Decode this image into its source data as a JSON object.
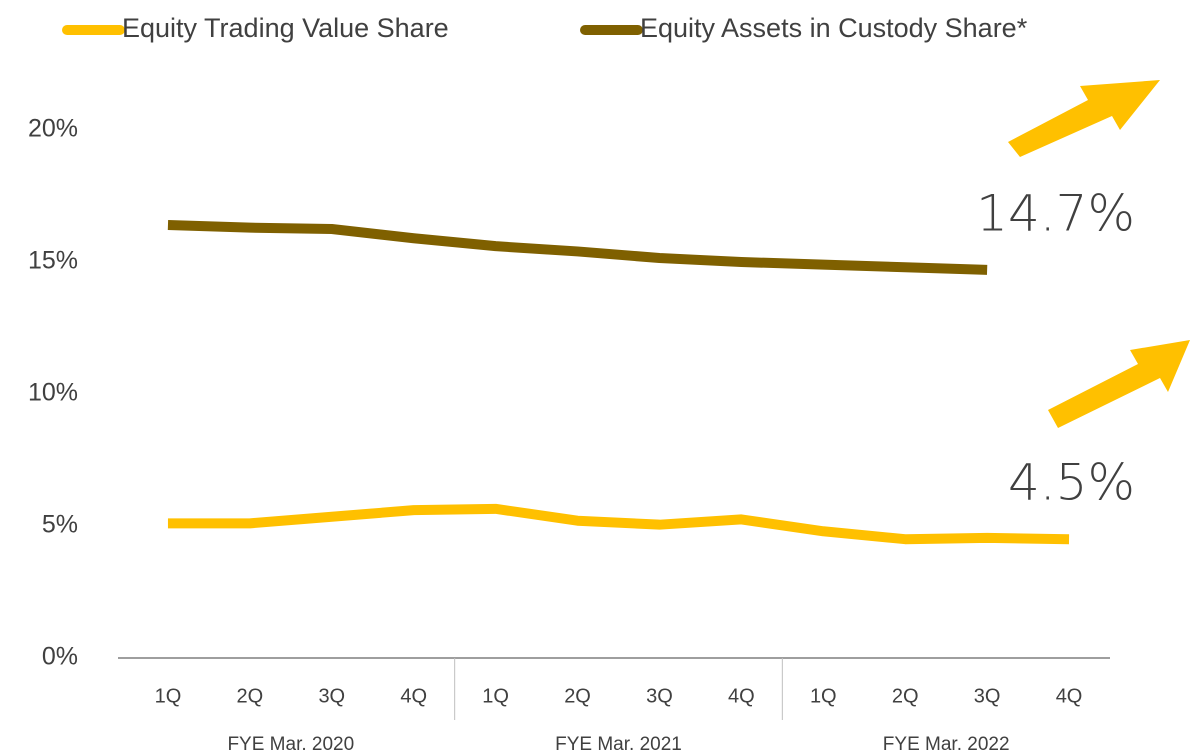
{
  "chart_data": {
    "type": "line",
    "categories": [
      "1Q",
      "2Q",
      "3Q",
      "4Q",
      "1Q",
      "2Q",
      "3Q",
      "4Q",
      "1Q",
      "2Q",
      "3Q",
      "4Q"
    ],
    "groups": [
      "FYE Mar. 2020",
      "FYE Mar. 2021",
      "FYE Mar. 2022"
    ],
    "series": [
      {
        "name": "Equity Trading Value Share",
        "color": "#FFC000",
        "values": [
          5.1,
          5.1,
          5.35,
          5.6,
          5.65,
          5.2,
          5.05,
          5.25,
          4.8,
          4.5,
          4.55,
          4.5
        ],
        "value_labels": [
          null,
          null,
          null,
          null,
          null,
          null,
          null,
          null,
          null,
          null,
          null,
          "4.5%"
        ]
      },
      {
        "name": "Equity Assets in Custody Share*",
        "color": "#7F6000",
        "values": [
          16.4,
          16.3,
          16.25,
          15.9,
          15.6,
          15.4,
          15.15,
          15.0,
          14.9,
          14.8,
          14.7,
          null
        ],
        "value_labels": [
          null,
          null,
          null,
          null,
          null,
          null,
          null,
          null,
          null,
          null,
          "14.7%",
          null
        ]
      }
    ],
    "ylim": [
      0,
      20
    ],
    "yticks": [
      {
        "value": 0,
        "label": "0%"
      },
      {
        "value": 5,
        "label": "5%"
      },
      {
        "value": 10,
        "label": "10%"
      },
      {
        "value": 15,
        "label": "15%"
      },
      {
        "value": 20,
        "label": "20%"
      }
    ],
    "grid": false
  }
}
